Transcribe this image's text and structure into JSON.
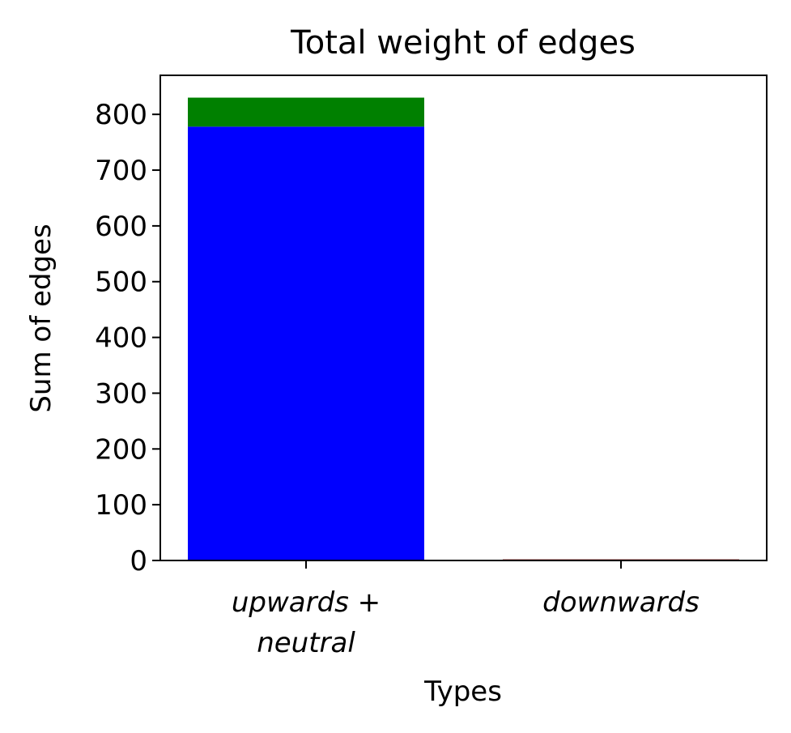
{
  "chart_data": {
    "type": "bar",
    "stacked": true,
    "title": "Total weight of edges",
    "xlabel": "Types",
    "ylabel": "Sum of edges",
    "categories": [
      [
        "upwards +",
        "neutral"
      ],
      [
        "downwards"
      ]
    ],
    "series": [
      {
        "color": "#0000ff",
        "values": [
          778,
          0
        ]
      },
      {
        "color": "#008000",
        "values": [
          52,
          0
        ]
      },
      {
        "color": "#800000",
        "values": [
          0,
          2
        ]
      }
    ],
    "ylim": [
      0,
      870
    ],
    "yticks": [
      0,
      100,
      200,
      300,
      400,
      500,
      600,
      700,
      800
    ],
    "grid": false,
    "legend": "none"
  }
}
